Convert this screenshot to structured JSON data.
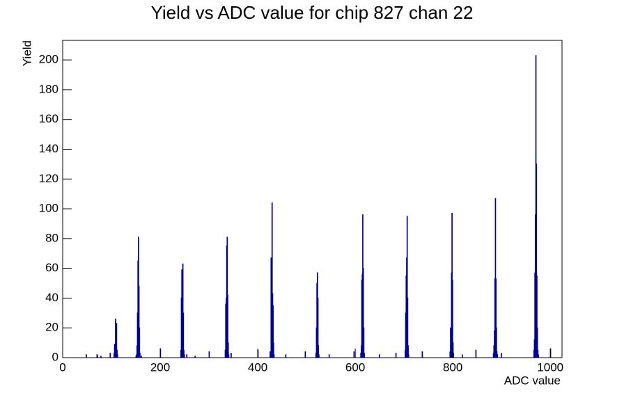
{
  "chart_data": {
    "type": "histogram",
    "title": "Yield vs ADC value for chip 827 chan 22",
    "xlabel": "ADC value",
    "ylabel": "Yield",
    "color": "#000099",
    "bins": [
      0,
      48,
      49,
      70,
      71,
      72,
      78,
      79,
      97,
      98,
      105,
      106,
      107,
      108,
      109,
      110,
      111,
      112,
      113,
      150,
      151,
      152,
      153,
      154,
      155,
      156,
      157,
      158,
      159,
      161,
      162,
      200,
      201,
      242,
      243,
      244,
      245,
      246,
      247,
      248,
      249,
      250,
      254,
      255,
      271,
      272,
      300,
      301,
      333,
      334,
      335,
      336,
      337,
      338,
      339,
      340,
      341,
      345,
      346,
      400,
      401,
      425,
      426,
      427,
      428,
      429,
      430,
      431,
      432,
      433,
      434,
      457,
      458,
      497,
      498,
      519,
      520,
      521,
      522,
      523,
      524,
      525,
      526,
      546,
      547,
      597,
      598,
      611,
      612,
      613,
      614,
      615,
      616,
      617,
      618,
      619,
      649,
      650,
      683,
      684,
      702,
      703,
      704,
      705,
      706,
      707,
      708,
      709,
      710,
      737,
      738,
      794,
      795,
      796,
      797,
      798,
      799,
      800,
      801,
      802,
      819,
      820,
      847,
      848,
      883,
      884,
      885,
      886,
      887,
      888,
      889,
      890,
      891,
      892,
      899,
      900,
      966,
      967,
      968,
      969,
      970,
      971,
      972,
      973,
      974,
      975,
      976,
      1000,
      1001,
      1024
    ],
    "values": [
      0,
      2,
      0,
      2,
      1,
      0,
      1,
      0,
      3,
      0,
      3,
      9,
      9,
      26,
      22,
      23,
      5,
      2,
      0,
      1,
      2,
      8,
      30,
      65,
      81,
      48,
      20,
      3,
      0,
      1,
      0,
      6,
      0,
      5,
      40,
      59,
      44,
      63,
      30,
      5,
      2,
      0,
      2,
      0,
      1,
      0,
      4,
      0,
      5,
      36,
      40,
      75,
      81,
      42,
      10,
      2,
      0,
      3,
      0,
      5,
      0,
      4,
      4,
      67,
      30,
      104,
      43,
      35,
      10,
      2,
      0,
      2,
      0,
      4,
      0,
      3,
      20,
      50,
      57,
      40,
      8,
      2,
      0,
      2,
      0,
      4,
      0,
      3,
      8,
      52,
      56,
      96,
      60,
      20,
      3,
      0,
      2,
      0,
      3,
      0,
      5,
      30,
      55,
      67,
      95,
      40,
      8,
      2,
      0,
      4,
      0,
      4,
      20,
      9,
      57,
      97,
      52,
      10,
      3,
      0,
      2,
      0,
      5,
      0,
      3,
      8,
      18,
      53,
      107,
      53,
      20,
      4,
      2,
      0,
      3,
      0,
      5,
      12,
      57,
      96,
      203,
      130,
      55,
      20,
      5,
      2,
      0,
      6,
      0
    ],
    "xlim": [
      0,
      1024
    ],
    "ylim": [
      0,
      213.15
    ],
    "xticks": [
      0,
      200,
      400,
      600,
      800,
      1000
    ],
    "yticks": [
      0,
      20,
      40,
      60,
      80,
      100,
      120,
      140,
      160,
      180,
      200
    ]
  }
}
